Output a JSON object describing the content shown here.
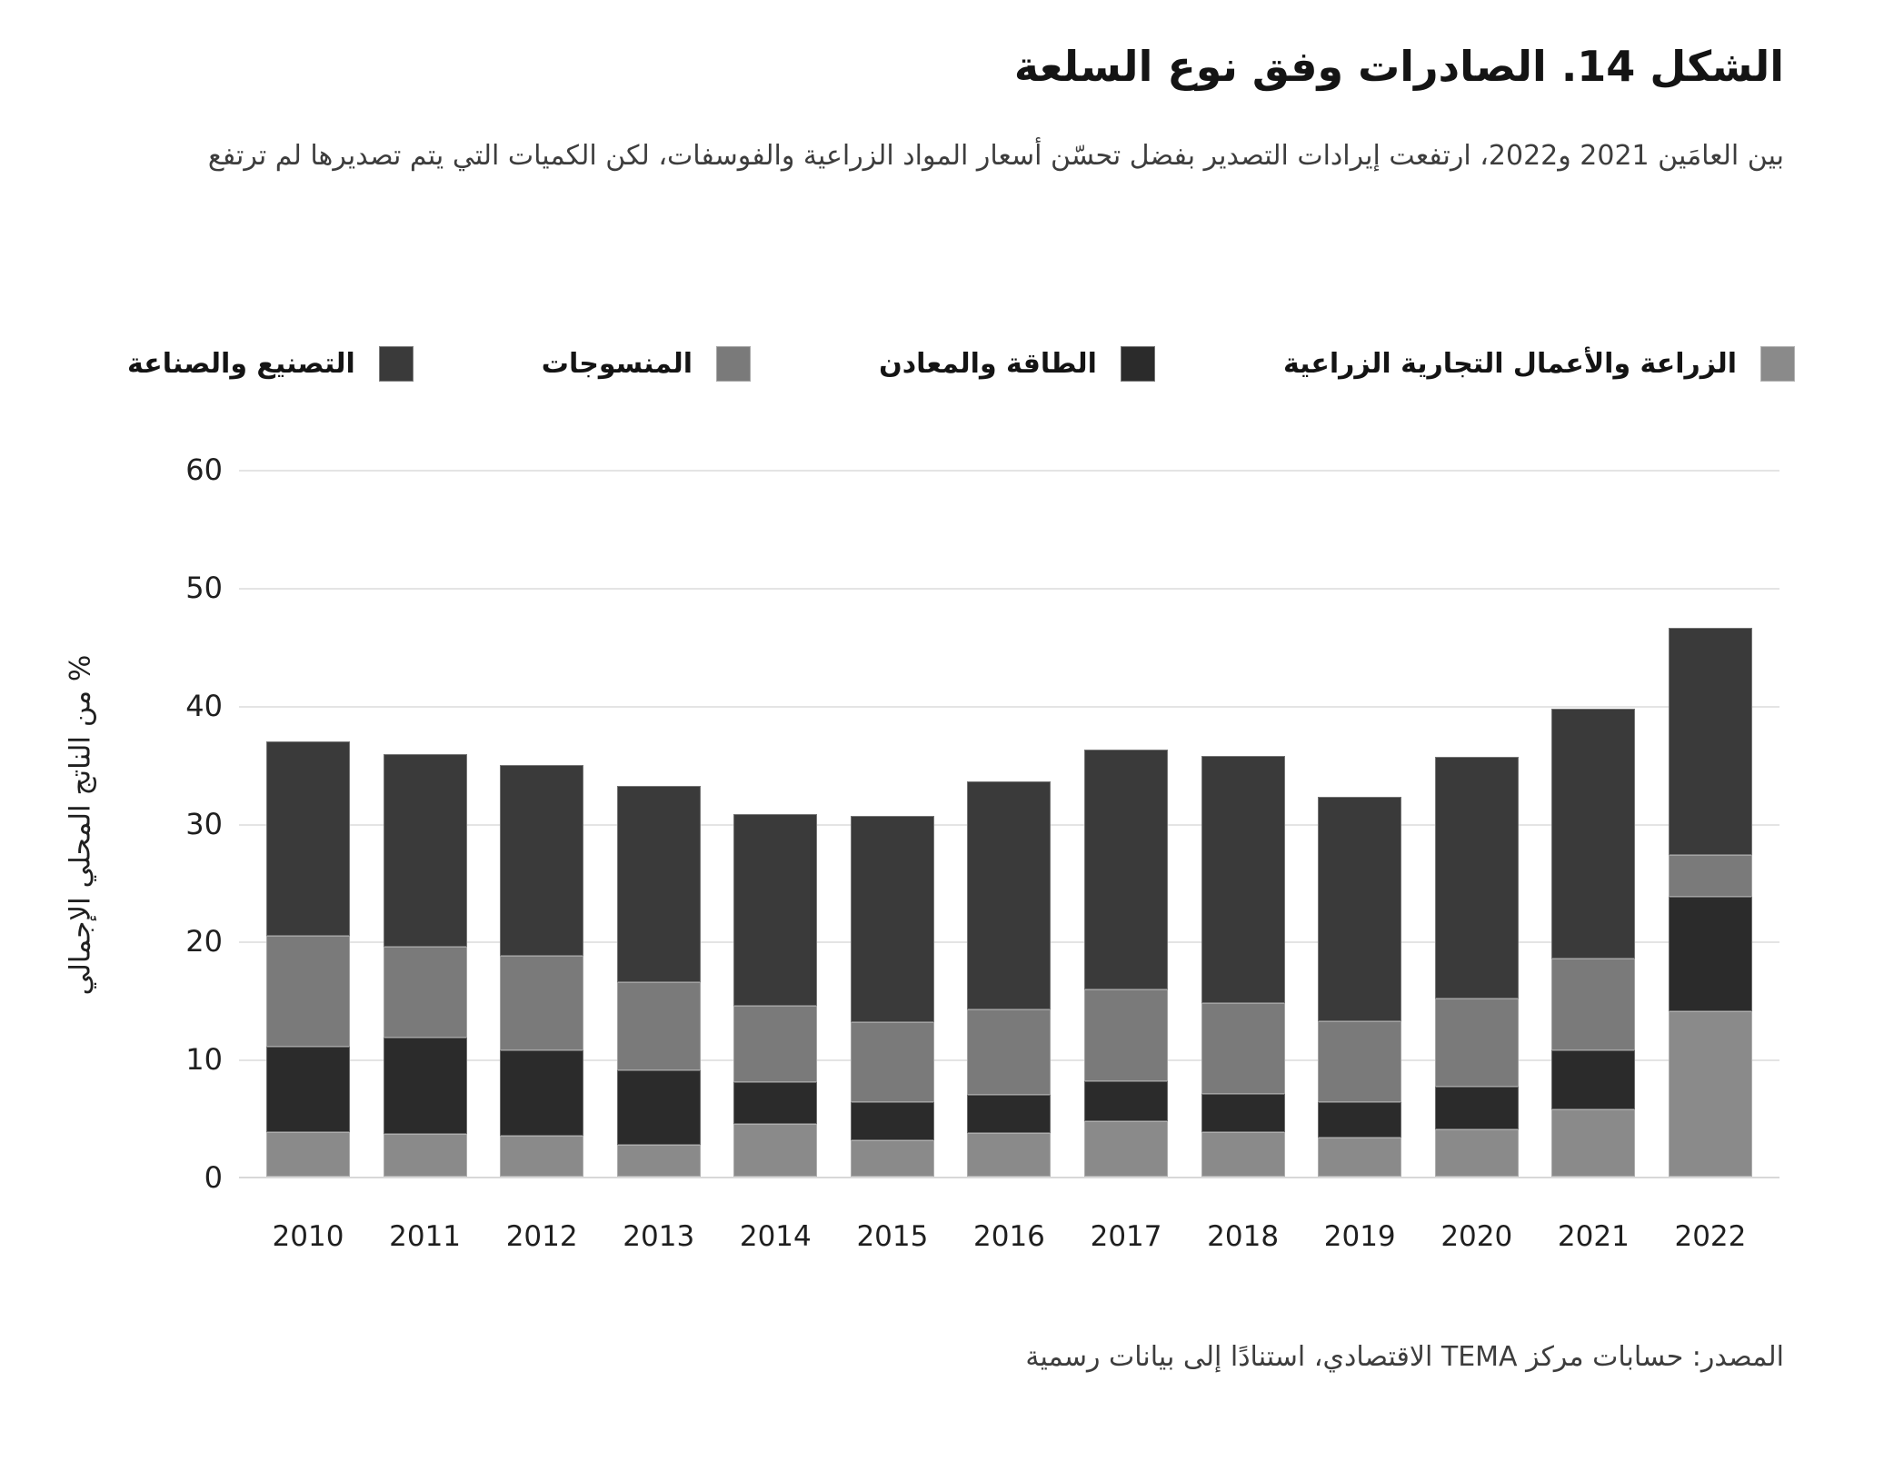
{
  "header": {
    "title": "الشكل 14. الصادرات وفق نوع السلعة",
    "subtitle": "بين العامَين 2021 و2022، ارتفعت إيرادات التصدير بفضل تحسّن أسعار المواد الزراعية والفوسفات، لكن الكميات التي يتم تصديرها لم ترتفع"
  },
  "source": "المصدر: حسابات مركز TEMA الاقتصادي، استنادًا إلى بيانات رسمية",
  "chart_data": {
    "type": "bar",
    "stacked": true,
    "grid": true,
    "legend_position": "top",
    "ylabel": "% من الناتج المحلي الإجمالي",
    "ylim": [
      0,
      60
    ],
    "yticks": [
      0,
      10,
      20,
      30,
      40,
      50,
      60
    ],
    "categories": [
      "2010",
      "2011",
      "2012",
      "2013",
      "2014",
      "2015",
      "2016",
      "2017",
      "2018",
      "2019",
      "2020",
      "2021",
      "2022"
    ],
    "series": [
      {
        "name": "الزراعة والأعمال التجارية الزراعية",
        "color": "#8a8a8a",
        "values": [
          3.8,
          3.6,
          3.5,
          2.7,
          4.5,
          3.1,
          3.7,
          4.7,
          3.8,
          3.3,
          4.0,
          5.7,
          14.0
        ]
      },
      {
        "name": "الطاقة والمعادن",
        "color": "#2b2b2b",
        "values": [
          7.2,
          8.2,
          7.2,
          6.3,
          3.5,
          3.2,
          3.2,
          3.4,
          3.2,
          3.0,
          3.6,
          5.0,
          9.7
        ]
      },
      {
        "name": "المنسوجات",
        "color": "#7a7a7a",
        "values": [
          9.4,
          7.7,
          8.0,
          7.5,
          6.5,
          6.8,
          7.3,
          7.8,
          7.7,
          6.9,
          7.5,
          7.8,
          3.6
        ]
      },
      {
        "name": "التصنيع والصناعة",
        "color": "#3a3a3a",
        "values": [
          16.5,
          16.3,
          16.2,
          16.6,
          16.2,
          17.5,
          19.3,
          20.3,
          21.0,
          19.0,
          20.5,
          21.2,
          19.2
        ]
      }
    ],
    "totals": [
      36.9,
      35.8,
      34.9,
      33.1,
      30.7,
      30.6,
      33.5,
      36.2,
      35.7,
      32.2,
      35.6,
      39.7,
      46.5
    ]
  }
}
